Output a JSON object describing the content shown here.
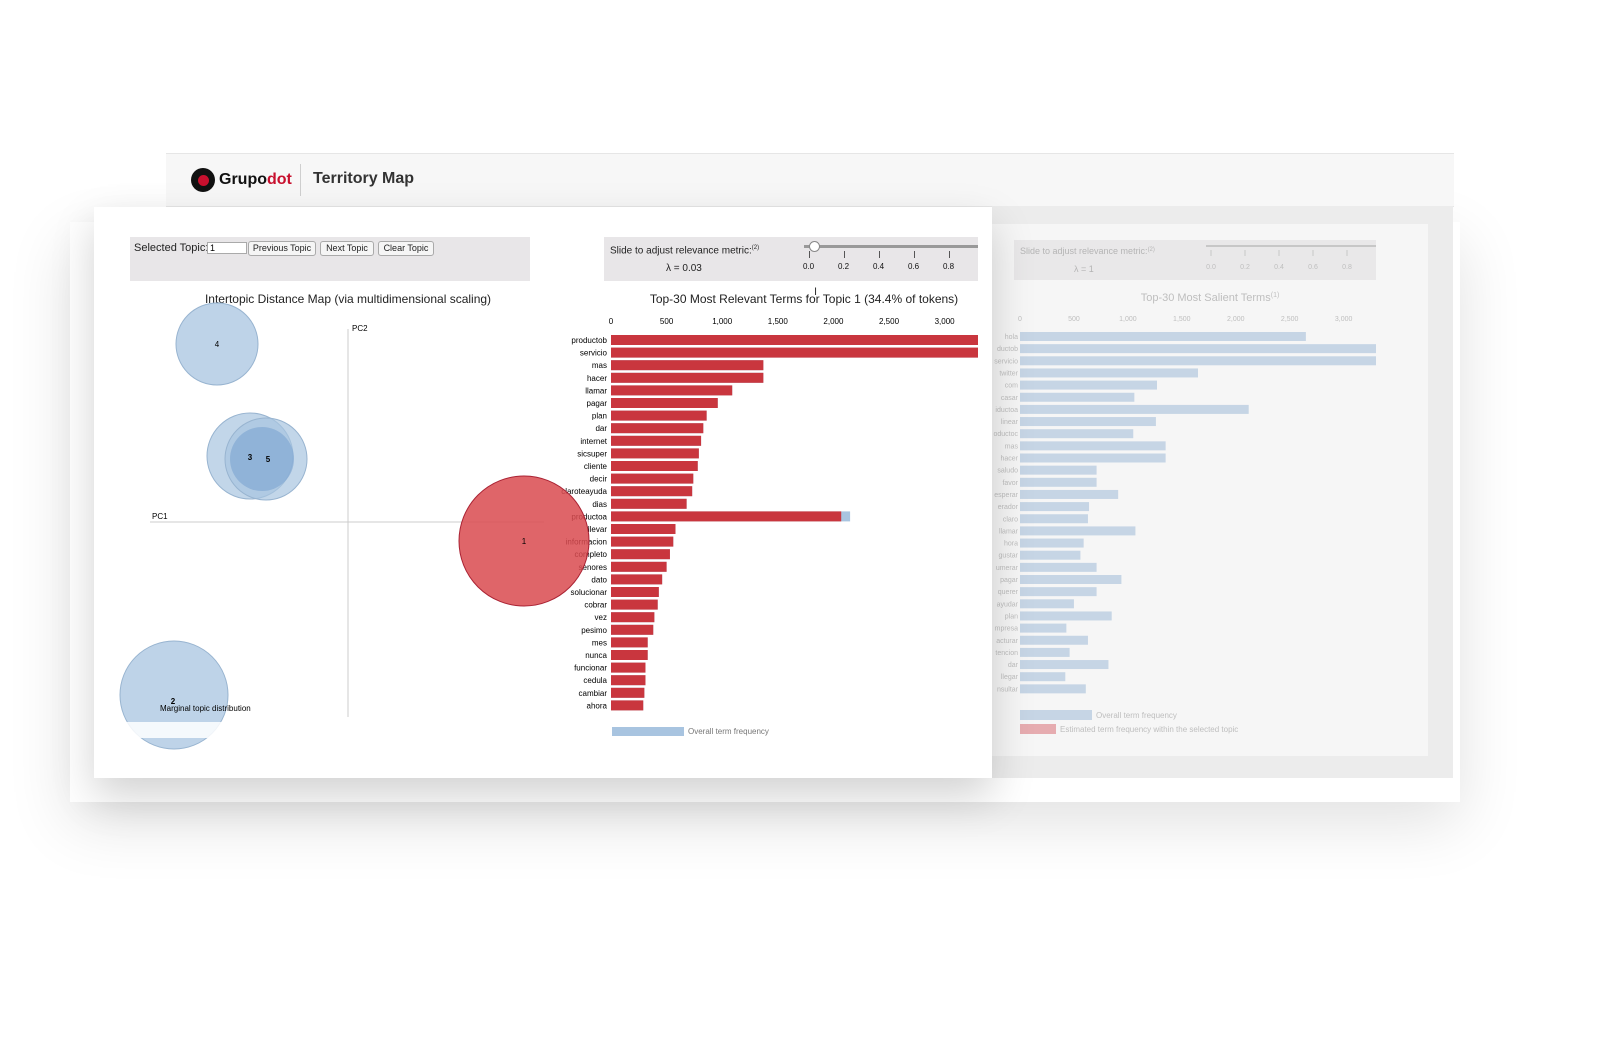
{
  "header": {
    "brand_a": "Grupo",
    "brand_b": "dot",
    "title": "Territory Map",
    "brand_color": "#c8102e"
  },
  "controls": {
    "selected_topic_label": "Selected Topic:",
    "selected_topic_value": "1",
    "prev_button": "Previous Topic",
    "next_button": "Next Topic",
    "clear_button": "Clear Topic",
    "slider_label": "Slide to adjust relevance metric:",
    "slider_superscript": "(2)",
    "lambda_text": "λ = 0.03",
    "slider_ticks": [
      "0.0",
      "0.2",
      "0.4",
      "0.6",
      "0.8"
    ]
  },
  "map": {
    "title": "Intertopic Distance Map (via multidimensional scaling)",
    "pc1": "PC1",
    "pc2": "PC2",
    "marginal_label": "Marginal topic distribution",
    "topics": [
      "4",
      "3",
      "5",
      "1",
      "2"
    ]
  },
  "chart_data": {
    "type": "bar",
    "title": "Top-30 Most Relevant Terms for Topic 1 (34.4% of tokens)",
    "x_ticks": [
      "0",
      "500",
      "1,000",
      "1,500",
      "2,000",
      "2,500",
      "3,000"
    ],
    "xlim": [
      0,
      3300
    ],
    "categories": [
      "productob",
      "servicio",
      "mas",
      "hacer",
      "llamar",
      "pagar",
      "plan",
      "dar",
      "internet",
      "sicsuper",
      "cliente",
      "decir",
      "claroteayuda",
      "dias",
      "productoa",
      "llevar",
      "informacion",
      "completo",
      "senores",
      "dato",
      "solucionar",
      "cobrar",
      "vez",
      "pesimo",
      "mes",
      "nunca",
      "funcionar",
      "cedula",
      "cambiar",
      "ahora"
    ],
    "series": [
      {
        "name": "Overall term frequency",
        "color": "#a8c4e0",
        "values": [
          3300,
          3300,
          1370,
          1370,
          1090,
          960,
          860,
          830,
          810,
          790,
          780,
          740,
          730,
          680,
          2150,
          580,
          560,
          530,
          500,
          460,
          430,
          420,
          390,
          380,
          330,
          330,
          310,
          310,
          300,
          290
        ]
      },
      {
        "name": "Estimated term frequency within the selected topic",
        "color": "#c9363e",
        "values": [
          3300,
          3300,
          1370,
          1370,
          1090,
          960,
          860,
          830,
          810,
          790,
          780,
          740,
          730,
          680,
          2070,
          580,
          560,
          530,
          500,
          460,
          430,
          420,
          390,
          380,
          330,
          330,
          310,
          310,
          300,
          290
        ]
      }
    ],
    "legend_overall": "Overall term frequency"
  },
  "back_panel": {
    "slider_label": "Slide to adjust relevance metric:",
    "slider_superscript": "(2)",
    "lambda_text": "λ = 1",
    "slider_ticks": [
      "0.0",
      "0.2",
      "0.4",
      "0.6",
      "0.8"
    ],
    "title": "Top-30 Most Salient Terms",
    "title_superscript": "(1)",
    "x_ticks": [
      "0",
      "500",
      "1,000",
      "1,500",
      "2,000",
      "2,500",
      "3,000"
    ],
    "terms": [
      "hola",
      "productob",
      "servicio",
      "twitter",
      "com",
      "casar",
      "productoa",
      "linear",
      "productoc",
      "mas",
      "hacer",
      "saludo",
      "favor",
      "esperar",
      "operador",
      "claro",
      "llamar",
      "hora",
      "gustar",
      "numerar",
      "pagar",
      "querer",
      "ayudar",
      "plan",
      "empresa",
      "facturar",
      "atencion",
      "dar",
      "llegar",
      "consultar"
    ],
    "term_labels": [
      "hola",
      "ductob",
      "servicio",
      "twitter",
      "com",
      "casar",
      "iductoa",
      "linear",
      "oductoc",
      "mas",
      "hacer",
      "saludo",
      "favor",
      "esperar",
      "erador",
      "claro",
      "llamar",
      "hora",
      "gustar",
      "umerar",
      "pagar",
      "querer",
      "ayudar",
      "plan",
      "mpresa",
      "acturar",
      "tencion",
      "dar",
      "llegar",
      "nsultar"
    ],
    "values": [
      2650,
      3300,
      3300,
      1650,
      1270,
      1060,
      2120,
      1260,
      1050,
      1350,
      1350,
      710,
      710,
      910,
      640,
      630,
      1070,
      590,
      560,
      710,
      940,
      710,
      500,
      850,
      430,
      630,
      460,
      820,
      420,
      610
    ],
    "legend_overall": "Overall term frequency",
    "legend_estimated": "Estimated term frequency within the selected topic"
  }
}
